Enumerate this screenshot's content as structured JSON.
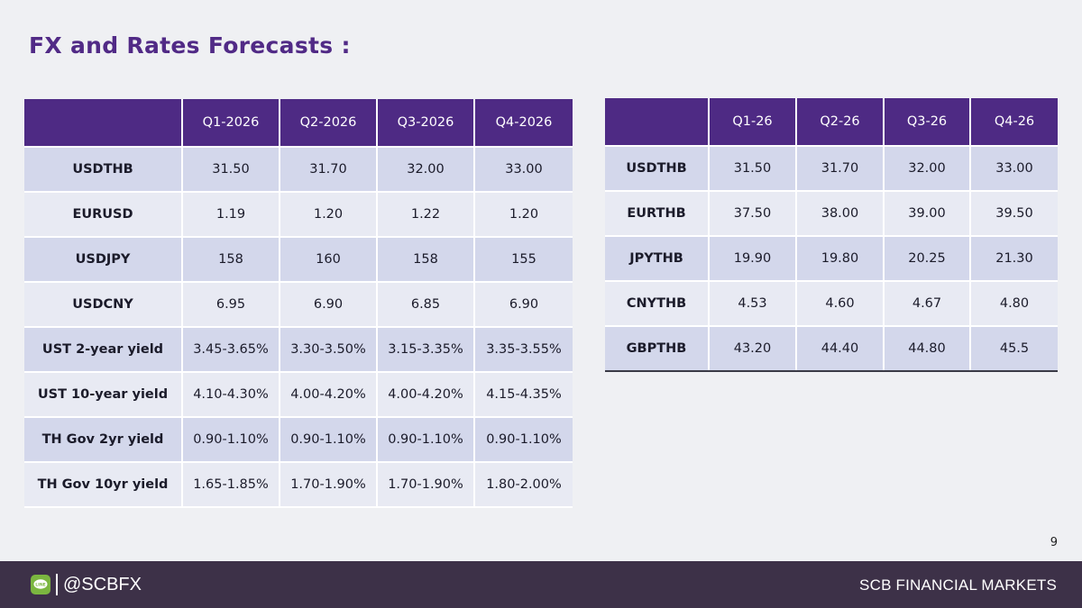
{
  "title": "FX and Rates Forecasts :",
  "left_table": {
    "headers": [
      "",
      "Q1-2026",
      "Q2-2026",
      "Q3-2026",
      "Q4-2026"
    ],
    "rows": [
      {
        "label": "USDTHB",
        "values": [
          "31.50",
          "31.70",
          "32.00",
          "33.00"
        ]
      },
      {
        "label": "EURUSD",
        "values": [
          "1.19",
          "1.20",
          "1.22",
          "1.20"
        ]
      },
      {
        "label": "USDJPY",
        "values": [
          "158",
          "160",
          "158",
          "155"
        ]
      },
      {
        "label": "USDCNY",
        "values": [
          "6.95",
          "6.90",
          "6.85",
          "6.90"
        ]
      },
      {
        "label": "UST 2-year yield",
        "values": [
          "3.45-3.65%",
          "3.30-3.50%",
          "3.15-3.35%",
          "3.35-3.55%"
        ]
      },
      {
        "label": "UST 10-year yield",
        "values": [
          "4.10-4.30%",
          "4.00-4.20%",
          "4.00-4.20%",
          "4.15-4.35%"
        ]
      },
      {
        "label": "TH Gov 2yr yield",
        "values": [
          "0.90-1.10%",
          "0.90-1.10%",
          "0.90-1.10%",
          "0.90-1.10%"
        ]
      },
      {
        "label": "TH Gov 10yr yield",
        "values": [
          "1.65-1.85%",
          "1.70-1.90%",
          "1.70-1.90%",
          "1.80-2.00%"
        ]
      }
    ]
  },
  "right_table": {
    "headers": [
      "",
      "Q1-26",
      "Q2-26",
      "Q3-26",
      "Q4-26"
    ],
    "rows": [
      {
        "label": "USDTHB",
        "values": [
          "31.50",
          "31.70",
          "32.00",
          "33.00"
        ]
      },
      {
        "label": "EURTHB",
        "values": [
          "37.50",
          "38.00",
          "39.00",
          "39.50"
        ]
      },
      {
        "label": "JPYTHB",
        "values": [
          "19.90",
          "19.80",
          "20.25",
          "21.30"
        ]
      },
      {
        "label": "CNYTHB",
        "values": [
          "4.53",
          "4.60",
          "4.67",
          "4.80"
        ]
      },
      {
        "label": "GBPTHB",
        "values": [
          "43.20",
          "44.40",
          "44.80",
          "45.5"
        ]
      }
    ]
  },
  "page_number": "9",
  "footer": {
    "handle": "@SCBFX",
    "icon": "line-app-icon",
    "icon_text": "LINE",
    "brand": "SCB FINANCIAL MARKETS"
  },
  "colors": {
    "accent": "#4e2a84",
    "title": "#512a86",
    "row_dark": "#d3d7eb",
    "row_light": "#e8eaf3",
    "footer_bg": "#3d3148"
  }
}
